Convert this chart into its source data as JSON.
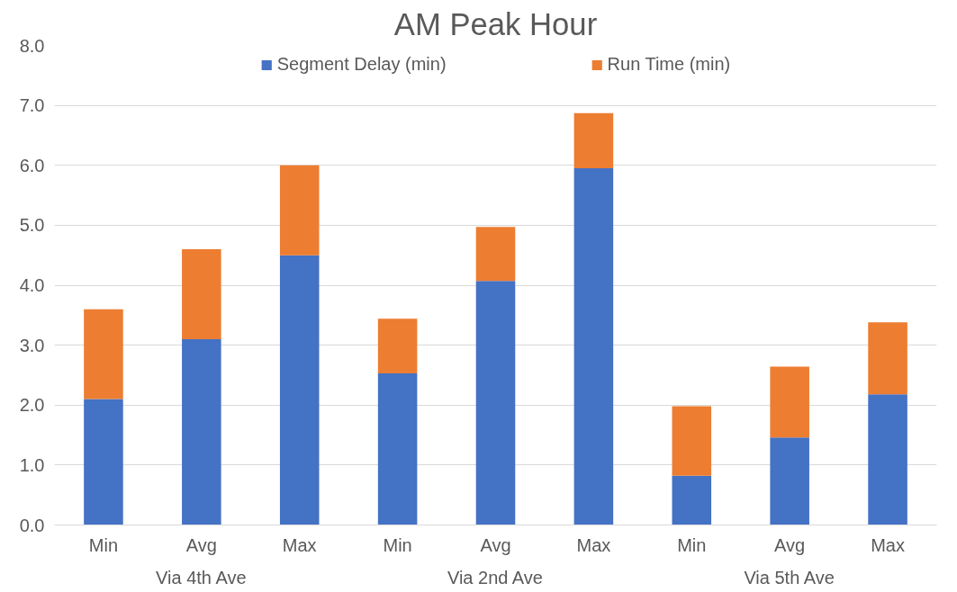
{
  "chart_data": {
    "type": "bar",
    "title": "AM Peak Hour",
    "stacked": true,
    "categories": [
      "Min",
      "Avg",
      "Max",
      "Min",
      "Avg",
      "Max",
      "Min",
      "Avg",
      "Max"
    ],
    "series": [
      {
        "name": "Segment Delay (min)",
        "color": "#4472c4",
        "values": [
          2.1,
          3.1,
          4.5,
          2.53,
          4.07,
          5.95,
          0.82,
          1.46,
          2.18
        ]
      },
      {
        "name": "Run Time (min)",
        "color": "#ed7d31",
        "values": [
          1.5,
          1.5,
          1.5,
          0.91,
          0.9,
          0.92,
          1.16,
          1.18,
          1.2
        ]
      }
    ],
    "annotations": [
      "Via 4th Ave",
      "Via 2nd Ave",
      "Via 5th Ave"
    ],
    "ylim": [
      0,
      8
    ],
    "yticks": [
      {
        "value": 0,
        "label": "0.0"
      },
      {
        "value": 1,
        "label": "1.0"
      },
      {
        "value": 2,
        "label": "2.0"
      },
      {
        "value": 3,
        "label": "3.0"
      },
      {
        "value": 4,
        "label": "4.0"
      },
      {
        "value": 5,
        "label": "5.0"
      },
      {
        "value": 6,
        "label": "6.0"
      },
      {
        "value": 7,
        "label": "7.0"
      },
      {
        "value": 8,
        "label": "8.0"
      }
    ],
    "grid": "y",
    "legend": "top"
  }
}
